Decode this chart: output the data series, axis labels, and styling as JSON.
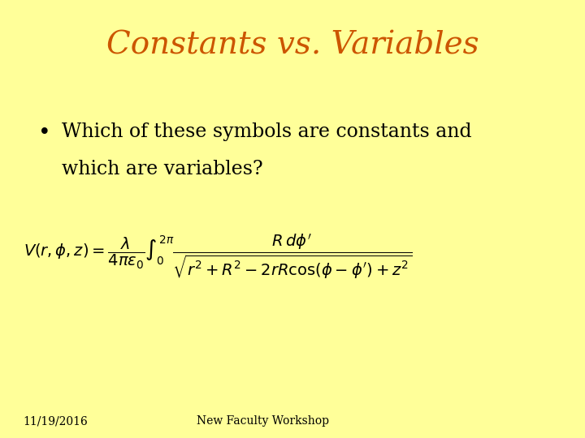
{
  "title": "Constants vs. Variables",
  "title_color": "#CC5500",
  "title_fontsize": 28,
  "background_color": "#FFFF99",
  "bullet_text_line1": "Which of these symbols are constants and",
  "bullet_text_line2": "which are variables?",
  "bullet_fontsize": 17,
  "equation_fontsize": 14,
  "footer_left": "11/19/2016",
  "footer_center": "New Faculty Workshop",
  "footer_fontsize": 10,
  "text_color": "#000000"
}
